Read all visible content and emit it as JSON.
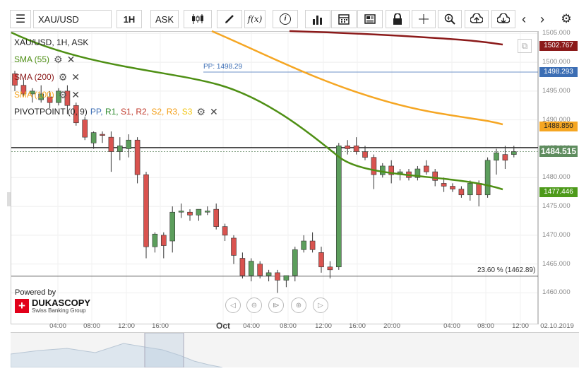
{
  "toolbar": {
    "symbol": "XAU/USD",
    "timeframe": "1H",
    "side": "ASK",
    "fx_label": "f(x)"
  },
  "legend": {
    "title": "XAU/USD, 1H, ASK",
    "sma55": "SMA (55)",
    "sma200": "SMA (200)",
    "sma100": "SMA (100)",
    "pivot_prefix": "PIVOTPOINT (0, 9)",
    "pivot_items": [
      {
        "label": "PP,",
        "color": "#3c6eb4"
      },
      {
        "label": "R1,",
        "color": "#2e8b2e"
      },
      {
        "label": "S1,",
        "color": "#c0392b"
      },
      {
        "label": "R2,",
        "color": "#c0392b"
      },
      {
        "label": "S2,",
        "color": "#f39c12"
      },
      {
        "label": "R3,",
        "color": "#f39c12"
      },
      {
        "label": "S3",
        "color": "#f1c40f"
      }
    ]
  },
  "annotations": {
    "pp_label": "PP: 1498.29",
    "fib_label": "23.60 % (1462.89)"
  },
  "price_tags": [
    {
      "text": "1502.767",
      "color": "#8b1a1a",
      "price": 1502.767
    },
    {
      "text": "1498.293",
      "color": "#3c6eb4",
      "price": 1498.293
    },
    {
      "text": "1488.850",
      "color": "#f5a623",
      "price": 1488.85,
      "text_color": "#222"
    },
    {
      "text": "1484.515",
      "color": "#5e8c5e",
      "price": 1484.515,
      "big": true
    },
    {
      "text": "1477.446",
      "color": "#4d9a1a",
      "price": 1477.446
    }
  ],
  "price_axis": [
    "1505.000",
    "1500.000",
    "1495.000",
    "1490.000",
    "1485.000",
    "1480.000",
    "1475.000",
    "1470.000",
    "1465.000",
    "1460.000"
  ],
  "time_axis": [
    {
      "label": "04:00",
      "bold": false
    },
    {
      "label": "08:00",
      "bold": false
    },
    {
      "label": "12:00",
      "bold": false
    },
    {
      "label": "16:00",
      "bold": false
    },
    {
      "label": "Oct",
      "bold": true
    },
    {
      "label": "04:00",
      "bold": false
    },
    {
      "label": "08:00",
      "bold": false
    },
    {
      "label": "12:00",
      "bold": false
    },
    {
      "label": "16:00",
      "bold": false
    },
    {
      "label": "20:00",
      "bold": false
    },
    {
      "label": "04:00",
      "bold": false
    },
    {
      "label": "08:00",
      "bold": false
    },
    {
      "label": "12:00",
      "bold": false
    },
    {
      "label": "02.10.2019",
      "bold": false
    }
  ],
  "branding": {
    "powered_by": "Powered by",
    "name": "DUKASCOPY",
    "tagline": "Swiss Banking Group"
  },
  "colors": {
    "bull": "#5c9e5c",
    "bear": "#d9534f",
    "sma55": "#4e8f14",
    "sma100": "#f5a623",
    "sma200": "#8b1a1a",
    "pp": "#3c6eb4"
  },
  "chart_data": {
    "type": "candlestick",
    "symbol": "XAU/USD",
    "timeframe": "1H",
    "horizontal_lines": [
      {
        "name": "PP",
        "price": 1498.29
      },
      {
        "name": "last",
        "price": 1484.515
      },
      {
        "name": "level",
        "price": 1485.2
      },
      {
        "name": "fib 23.60 %",
        "price": 1462.89
      }
    ],
    "candles": [
      [
        1498,
        1498.5,
        1495,
        1496
      ],
      [
        1496,
        1497,
        1494,
        1494.5
      ],
      [
        1494.5,
        1495.5,
        1493,
        1495
      ],
      [
        1493.5,
        1496,
        1493,
        1494.5
      ],
      [
        1494,
        1495,
        1492,
        1493
      ],
      [
        1493,
        1495.5,
        1492.5,
        1495
      ],
      [
        1495,
        1496,
        1491,
        1492.5
      ],
      [
        1492.5,
        1493,
        1489,
        1489.5
      ],
      [
        1490,
        1490.5,
        1486.5,
        1487
      ],
      [
        1486,
        1488,
        1485,
        1487.8
      ],
      [
        1487.5,
        1488,
        1486,
        1487.3
      ],
      [
        1487,
        1488,
        1481,
        1484.5
      ],
      [
        1484.5,
        1487,
        1483,
        1485.5
      ],
      [
        1485,
        1487.5,
        1483.5,
        1486.5
      ],
      [
        1486.5,
        1487,
        1479,
        1480.5
      ],
      [
        1480.5,
        1481,
        1466,
        1468
      ],
      [
        1468,
        1470.5,
        1467,
        1470.2
      ],
      [
        1470,
        1470.5,
        1466,
        1468.2
      ],
      [
        1469,
        1475,
        1467,
        1474
      ],
      [
        1474,
        1475.5,
        1473,
        1474.2
      ],
      [
        1474,
        1474.5,
        1472.5,
        1473.5
      ],
      [
        1473.5,
        1474.5,
        1472.5,
        1474.5
      ],
      [
        1474,
        1475,
        1473.5,
        1474.2
      ],
      [
        1474.5,
        1475.5,
        1471,
        1471.5
      ],
      [
        1471.5,
        1472,
        1469,
        1470
      ],
      [
        1469.5,
        1470,
        1465,
        1466.5
      ],
      [
        1466,
        1467,
        1462.5,
        1463
      ],
      [
        1463,
        1466,
        1462,
        1465.5
      ],
      [
        1465,
        1465.5,
        1462.5,
        1463
      ],
      [
        1463,
        1464,
        1462,
        1463.5
      ],
      [
        1463.5,
        1464,
        1460,
        1462.2
      ],
      [
        1462.2,
        1463,
        1461,
        1463
      ],
      [
        1463,
        1468,
        1462,
        1467.5
      ],
      [
        1467.5,
        1470,
        1467,
        1469
      ],
      [
        1469,
        1470.5,
        1467,
        1467.5
      ],
      [
        1467,
        1468,
        1463.5,
        1464.5
      ],
      [
        1464.5,
        1465.5,
        1462.5,
        1464
      ],
      [
        1464.5,
        1486,
        1464,
        1485.5
      ],
      [
        1485.5,
        1486.5,
        1484,
        1485
      ],
      [
        1485.5,
        1487,
        1484,
        1484.5
      ],
      [
        1484.5,
        1485.5,
        1483,
        1483.5
      ],
      [
        1483.5,
        1484,
        1478,
        1480.5
      ],
      [
        1480.5,
        1482.5,
        1480,
        1482
      ],
      [
        1482,
        1483,
        1479,
        1480.5
      ],
      [
        1480.5,
        1481.5,
        1479.5,
        1481
      ],
      [
        1481,
        1481.5,
        1479.5,
        1480
      ],
      [
        1480,
        1482,
        1479.5,
        1481.5
      ],
      [
        1482,
        1483,
        1480.5,
        1481
      ],
      [
        1481,
        1481.5,
        1478.5,
        1479.5
      ],
      [
        1479,
        1480,
        1477.5,
        1478.5
      ],
      [
        1478.5,
        1479,
        1477.5,
        1478
      ],
      [
        1478,
        1478.5,
        1476.5,
        1477
      ],
      [
        1477,
        1479.5,
        1476,
        1479
      ],
      [
        1479,
        1479.5,
        1475,
        1477
      ],
      [
        1477,
        1483.5,
        1476.5,
        1483
      ],
      [
        1483,
        1485,
        1480.5,
        1484.3
      ],
      [
        1484,
        1485.5,
        1481.5,
        1483
      ],
      [
        1484,
        1485.5,
        1483.5,
        1484.5
      ]
    ]
  }
}
